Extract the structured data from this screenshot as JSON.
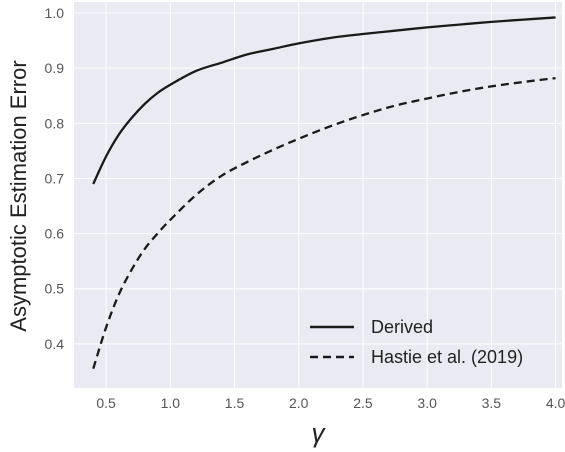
{
  "chart_data": {
    "type": "line",
    "xlabel": "γ",
    "ylabel": "Asymptotic Estimation Error",
    "xlim": [
      0.25,
      4.05
    ],
    "ylim": [
      0.32,
      1.02
    ],
    "xticks": [
      "0.5",
      "1.0",
      "1.5",
      "2.0",
      "2.5",
      "3.0",
      "3.5",
      "4.0"
    ],
    "yticks": [
      "0.4",
      "0.5",
      "0.6",
      "0.7",
      "0.8",
      "0.9",
      "1.0"
    ],
    "grid": true,
    "legend_position": "lower-right",
    "series": [
      {
        "name": "Derived",
        "style": "solid",
        "color": "#1a1a1a",
        "x": [
          0.4,
          0.5,
          0.6,
          0.7,
          0.8,
          0.9,
          1.0,
          1.2,
          1.4,
          1.6,
          1.8,
          2.0,
          2.25,
          2.5,
          2.75,
          3.0,
          3.25,
          3.5,
          3.75,
          4.0
        ],
        "y": [
          0.69,
          0.74,
          0.78,
          0.81,
          0.835,
          0.855,
          0.87,
          0.895,
          0.91,
          0.925,
          0.935,
          0.945,
          0.955,
          0.962,
          0.968,
          0.974,
          0.979,
          0.984,
          0.988,
          0.992
        ]
      },
      {
        "name": "Hastie et al. (2019)",
        "style": "dashed",
        "color": "#1a1a1a",
        "x": [
          0.4,
          0.5,
          0.6,
          0.7,
          0.8,
          0.9,
          1.0,
          1.2,
          1.4,
          1.6,
          1.8,
          2.0,
          2.25,
          2.5,
          2.75,
          3.0,
          3.25,
          3.5,
          3.75,
          4.0
        ],
        "y": [
          0.355,
          0.43,
          0.49,
          0.535,
          0.572,
          0.6,
          0.625,
          0.67,
          0.705,
          0.73,
          0.752,
          0.772,
          0.795,
          0.815,
          0.832,
          0.845,
          0.857,
          0.867,
          0.875,
          0.882
        ]
      }
    ]
  }
}
